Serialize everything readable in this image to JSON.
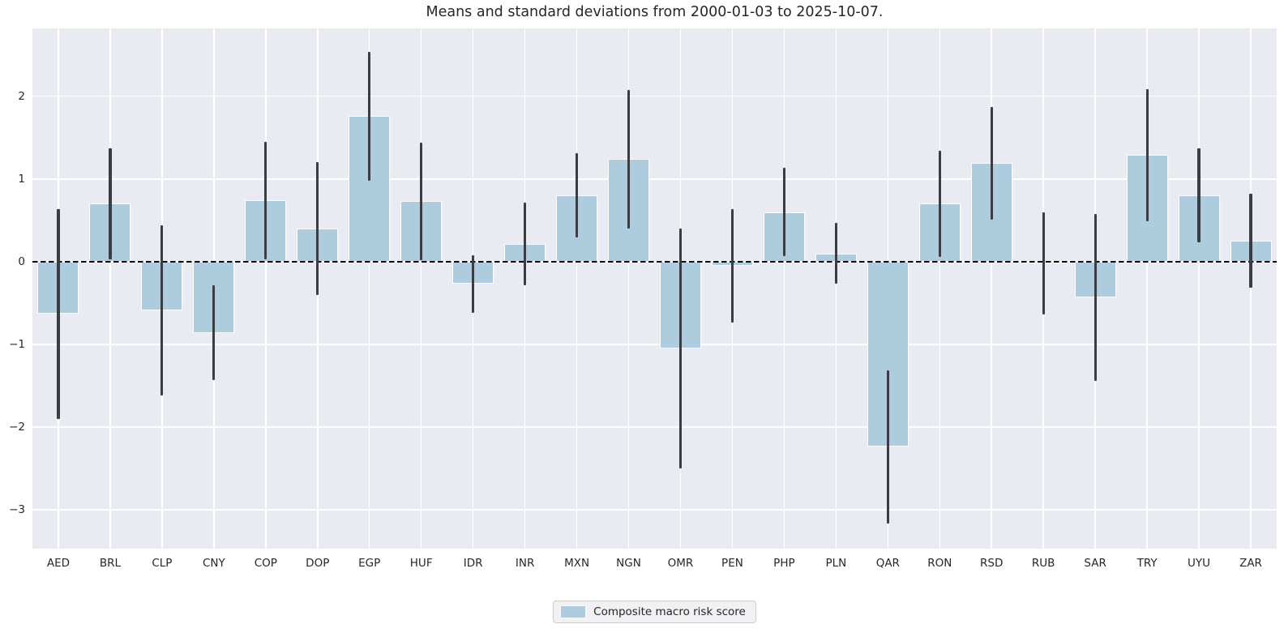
{
  "page": {
    "title": "Means and standard deviations from 2000-01-03 to 2025-10-07."
  },
  "legend": {
    "label": "Composite macro risk score"
  },
  "colors": {
    "page_bg": "#ffffff",
    "plot_bg": "#eaeaf2",
    "gridline": "#ffffff",
    "bar_fill": "#adccde",
    "bar_edge": "#ffffff",
    "error_bar": "#3a3e42",
    "zero_line": "#0a0a0a",
    "text": "#262626",
    "legend_bg": "#f1f1f3",
    "legend_border": "#cccccc"
  },
  "chart_data": {
    "type": "bar",
    "title": "Means and standard deviations from 2000-01-03 to 2025-10-07.",
    "xlabel": "",
    "ylabel": "",
    "categories": [
      "AED",
      "BRL",
      "CLP",
      "CNY",
      "COP",
      "DOP",
      "EGP",
      "HUF",
      "IDR",
      "INR",
      "MXN",
      "NGN",
      "OMR",
      "PEN",
      "PHP",
      "PLN",
      "QAR",
      "RON",
      "RSD",
      "RUB",
      "SAR",
      "TRY",
      "UYU",
      "ZAR"
    ],
    "series": [
      {
        "name": "Composite macro risk score",
        "values": [
          -0.63,
          0.7,
          -0.59,
          -0.86,
          0.74,
          0.4,
          1.76,
          0.73,
          -0.27,
          0.21,
          0.8,
          1.24,
          -1.05,
          -0.05,
          0.6,
          0.1,
          -2.24,
          0.7,
          1.19,
          -0.02,
          -0.43,
          1.29,
          0.8,
          0.25
        ],
        "error_std": [
          1.27,
          0.67,
          1.03,
          0.57,
          0.71,
          0.8,
          0.78,
          0.71,
          0.35,
          0.5,
          0.51,
          0.84,
          1.45,
          0.69,
          0.53,
          0.37,
          0.93,
          0.64,
          0.68,
          0.62,
          1.01,
          0.8,
          0.57,
          0.57
        ]
      }
    ],
    "yticks": [
      2,
      1,
      0,
      -1,
      -2,
      -3
    ],
    "ylim": [
      -3.47,
      2.82
    ],
    "grid": true,
    "grid_style": "white gridlines on lavender background (seaborn darkgrid)",
    "zero_line": "black dashed horizontal line at y=0",
    "error_bars": "vertical dark lines spanning mean ± 1 std, no caps",
    "legend_position": "bottom-center"
  }
}
